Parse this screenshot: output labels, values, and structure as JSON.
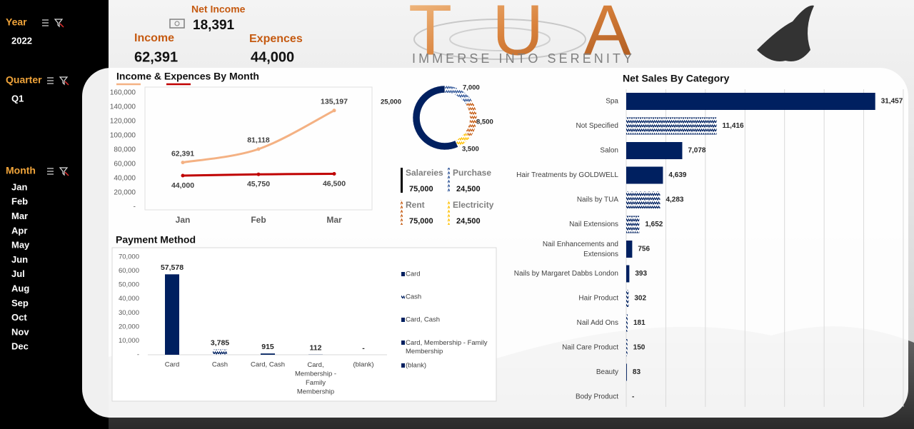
{
  "sidebar": {
    "filters": [
      {
        "label": "Year",
        "items": [
          "2022"
        ]
      },
      {
        "label": "Quarter",
        "items": [
          "Q1"
        ]
      },
      {
        "label": "Month",
        "items": [
          "Jan",
          "Feb",
          "Mar",
          "Apr",
          "May",
          "Jun",
          "Jul",
          "Aug",
          "Sep",
          "Oct",
          "Nov",
          "Dec"
        ]
      }
    ]
  },
  "kpis": [
    {
      "label": "Net Income",
      "value": "18,391"
    },
    {
      "label": "Income",
      "value": "62,391"
    },
    {
      "label": "Expences",
      "value": "44,000"
    }
  ],
  "logo": {
    "name": "TUA",
    "tagline": "IMMERSE INTO SERENITY"
  },
  "chart_data": [
    {
      "type": "line",
      "title": "Income & Expences By Month",
      "categories": [
        "Jan",
        "Feb",
        "Mar"
      ],
      "series": [
        {
          "color": "#f4b183",
          "values": [
            62391,
            81118,
            135197
          ],
          "value_labels": [
            "62,391",
            "81,118",
            "135,197"
          ]
        },
        {
          "color": "#c00000",
          "values": [
            44000,
            45750,
            46500
          ],
          "value_labels": [
            "44,000",
            "45,750",
            "46,500"
          ]
        }
      ],
      "ylim": [
        0,
        160000
      ],
      "yticks": [
        {
          "value": 0,
          "label": "-"
        },
        {
          "value": 20000,
          "label": "20,000"
        },
        {
          "value": 40000,
          "label": "40,000"
        },
        {
          "value": 60000,
          "label": "60,000"
        },
        {
          "value": 80000,
          "label": "80,000"
        },
        {
          "value": 100000,
          "label": "100,000"
        },
        {
          "value": 120000,
          "label": "120,000"
        },
        {
          "value": 140000,
          "label": "140,000"
        },
        {
          "value": 160000,
          "label": "160,000"
        }
      ]
    },
    {
      "type": "pie",
      "categories": [
        "Salareies",
        "Purchase",
        "Rent",
        "Electricity"
      ],
      "values": [
        25000,
        7000,
        8500,
        3500
      ],
      "value_labels": [
        "25,000",
        "7,000",
        "8,500",
        "3,500"
      ],
      "colors": [
        "#002060",
        "#2f5597",
        "#c55a11",
        "#ffc000"
      ],
      "patterned": [
        false,
        true,
        true,
        true
      ],
      "totals_labels": [
        "75,000",
        "24,500",
        "75,000",
        "24,500"
      ]
    },
    {
      "type": "bar",
      "title": "Payment Method",
      "categories": [
        "Card",
        "Cash",
        "Card, Cash",
        "Card, Membership - Family Membership",
        "(blank)"
      ],
      "values": [
        57578,
        3785,
        915,
        112,
        0
      ],
      "value_labels": [
        "57,578",
        "3,785",
        "915",
        "112",
        "-"
      ],
      "color": "#002060",
      "patterned": [
        false,
        true,
        false,
        false,
        false
      ],
      "ylim": [
        0,
        70000
      ],
      "yticks": [
        {
          "value": 0,
          "label": "-"
        },
        {
          "value": 10000,
          "label": "10,000"
        },
        {
          "value": 20000,
          "label": "20,000"
        },
        {
          "value": 30000,
          "label": "30,000"
        },
        {
          "value": 40000,
          "label": "40,000"
        },
        {
          "value": 50000,
          "label": "50,000"
        },
        {
          "value": 60000,
          "label": "60,000"
        },
        {
          "value": 70000,
          "label": "70,000"
        }
      ],
      "legend": "right"
    },
    {
      "type": "barh",
      "title": "Net Sales By Category",
      "categories": [
        "Spa",
        "Not Specified",
        "Salon",
        "Hair Treatments by GOLDWELL",
        "Nails by TUA",
        "Nail Extensions",
        "Nail Enhancements and Extensions",
        "Nails by Margaret Dabbs London",
        "Hair Product",
        "Nail Add Ons",
        "Nail Care Product",
        "Beauty",
        "Body Product"
      ],
      "values": [
        31457,
        11416,
        7078,
        4639,
        4283,
        1652,
        756,
        393,
        302,
        181,
        150,
        83,
        0
      ],
      "value_labels": [
        "31,457",
        "11,416",
        "7,078",
        "4,639",
        "4,283",
        "1,652",
        "756",
        "393",
        "302",
        "181",
        "150",
        "83",
        "-"
      ],
      "color": "#002060",
      "patterned": [
        false,
        true,
        false,
        false,
        true,
        true,
        false,
        false,
        true,
        true,
        true,
        false,
        false
      ],
      "xlim": [
        0,
        35000
      ],
      "xticks": [
        0,
        5000,
        10000,
        15000,
        20000,
        25000,
        30000,
        35000
      ],
      "grid": true
    }
  ]
}
